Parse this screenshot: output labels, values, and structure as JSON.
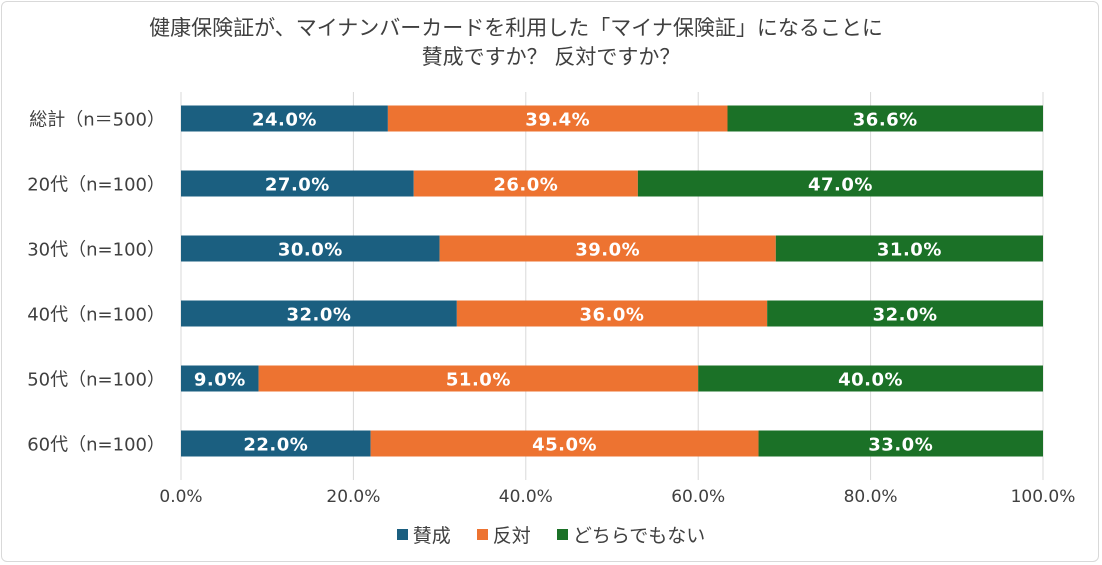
{
  "chart_data": {
    "type": "bar",
    "orientation": "horizontal",
    "stacked": "percent",
    "title": "健康保険証が、マイナンバーカードを利用した「マイナ保険証」になることに 賛成ですか？ 反対ですか？",
    "title_lines": [
      "健康保険証が、マイナンバーカードを利用した「マイナ保険証」になることに",
      "賛成ですか？ 反対ですか？"
    ],
    "categories": [
      "総計（n＝500）",
      "20代（n=100）",
      "30代（n=100）",
      "40代（n=100）",
      "50代（n=100）",
      "60代（n=100）"
    ],
    "series": [
      {
        "name": "賛成",
        "color": "#1b5f80",
        "values": [
          24.0,
          27.0,
          30.0,
          32.0,
          9.0,
          22.0
        ],
        "labels": [
          "24.0%",
          "27.0%",
          "30.0%",
          "32.0%",
          "9.0%",
          "22.0%"
        ]
      },
      {
        "name": "反対",
        "color": "#ed7331",
        "values": [
          39.4,
          26.0,
          39.0,
          36.0,
          51.0,
          45.0
        ],
        "labels": [
          "39.4%",
          "26.0%",
          "39.0%",
          "36.0%",
          "51.0%",
          "45.0%"
        ]
      },
      {
        "name": "どちらでもない",
        "color": "#1b7127",
        "values": [
          36.6,
          47.0,
          31.0,
          32.0,
          40.0,
          33.0
        ],
        "labels": [
          "36.6%",
          "47.0%",
          "31.0%",
          "32.0%",
          "40.0%",
          "33.0%"
        ]
      }
    ],
    "xlim": [
      0,
      100
    ],
    "xticks": [
      0,
      20,
      40,
      60,
      80,
      100
    ],
    "xtick_labels": [
      "0.0%",
      "20.0%",
      "40.0%",
      "60.0%",
      "80.0%",
      "100.0%"
    ],
    "xlabel": "",
    "ylabel": "",
    "grid": true,
    "legend_position": "bottom"
  }
}
